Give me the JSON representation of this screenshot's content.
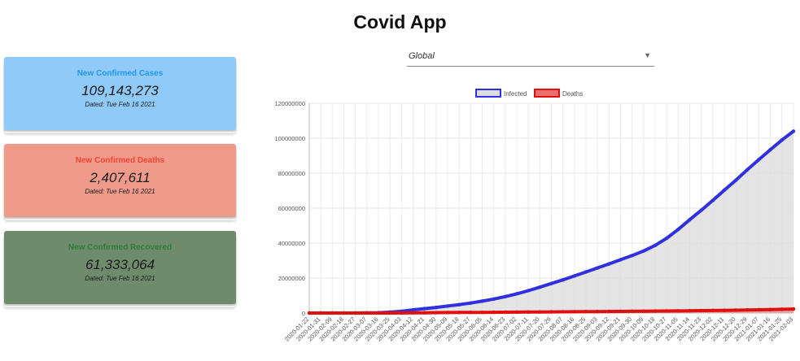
{
  "app": {
    "title": "Covid App"
  },
  "cards": {
    "cases": {
      "label": "New Confirmed Cases",
      "value": "109,143,273",
      "date": "Dated: Tue Feb 16 2021",
      "color": "#90caf9"
    },
    "deaths": {
      "label": "New Confirmed Deaths",
      "value": "2,407,611",
      "date": "Dated: Tue Feb 16 2021",
      "color": "#ef9a8a"
    },
    "recovered": {
      "label": "New Confirmed Recovered",
      "value": "61,333,064",
      "date": "Dated: Tue Feb 16 2021",
      "color": "#6e8b6c"
    }
  },
  "country_select": {
    "value": "Global",
    "icon": "chevron-down-icon"
  },
  "chart_data": {
    "type": "line",
    "title": "",
    "xlabel": "",
    "ylabel": "",
    "ylim": [
      0,
      120000000
    ],
    "yticks": [
      0,
      20000000,
      40000000,
      60000000,
      80000000,
      100000000,
      120000000
    ],
    "grid": true,
    "legend": "top-center",
    "x": [
      "2020-01-22",
      "2020-01-31",
      "2020-02-09",
      "2020-02-18",
      "2020-02-27",
      "2020-03-07",
      "2020-03-16",
      "2020-03-25",
      "2020-04-03",
      "2020-04-12",
      "2020-04-21",
      "2020-04-30",
      "2020-05-09",
      "2020-05-18",
      "2020-05-27",
      "2020-06-05",
      "2020-06-14",
      "2020-06-23",
      "2020-07-02",
      "2020-07-11",
      "2020-07-20",
      "2020-07-29",
      "2020-08-07",
      "2020-08-16",
      "2020-08-25",
      "2020-09-03",
      "2020-09-12",
      "2020-09-21",
      "2020-09-30",
      "2020-10-09",
      "2020-10-18",
      "2020-10-27",
      "2020-11-05",
      "2020-11-14",
      "2020-11-23",
      "2020-12-02",
      "2020-12-11",
      "2020-12-20",
      "2020-12-29",
      "2021-01-07",
      "2021-01-16",
      "2021-01-25",
      "2021-02-03"
    ],
    "series": [
      {
        "name": "Infected",
        "color": "#3030e0",
        "fill": "#dddddd",
        "values": [
          0,
          0,
          0,
          0,
          0,
          100000,
          200000,
          500000,
          1000000,
          1800000,
          2500000,
          3200000,
          4000000,
          4800000,
          5700000,
          6800000,
          8000000,
          9400000,
          11000000,
          12800000,
          14800000,
          16900000,
          19000000,
          21200000,
          23500000,
          25800000,
          28100000,
          30500000,
          32900000,
          35500000,
          38700000,
          42800000,
          47800000,
          53400000,
          58800000,
          64400000,
          70300000,
          76000000,
          82000000,
          87800000,
          93500000,
          99000000,
          104000000
        ]
      },
      {
        "name": "Deaths",
        "color": "#e01010",
        "fill": "#e87070",
        "values": [
          0,
          0,
          0,
          0,
          0,
          3000,
          7000,
          20000,
          50000,
          100000,
          160000,
          220000,
          270000,
          310000,
          350000,
          390000,
          430000,
          470000,
          510000,
          550000,
          600000,
          650000,
          700000,
          750000,
          800000,
          850000,
          900000,
          950000,
          1000000,
          1050000,
          1100000,
          1160000,
          1220000,
          1300000,
          1380000,
          1460000,
          1550000,
          1650000,
          1750000,
          1870000,
          2000000,
          2150000,
          2300000
        ]
      }
    ]
  }
}
